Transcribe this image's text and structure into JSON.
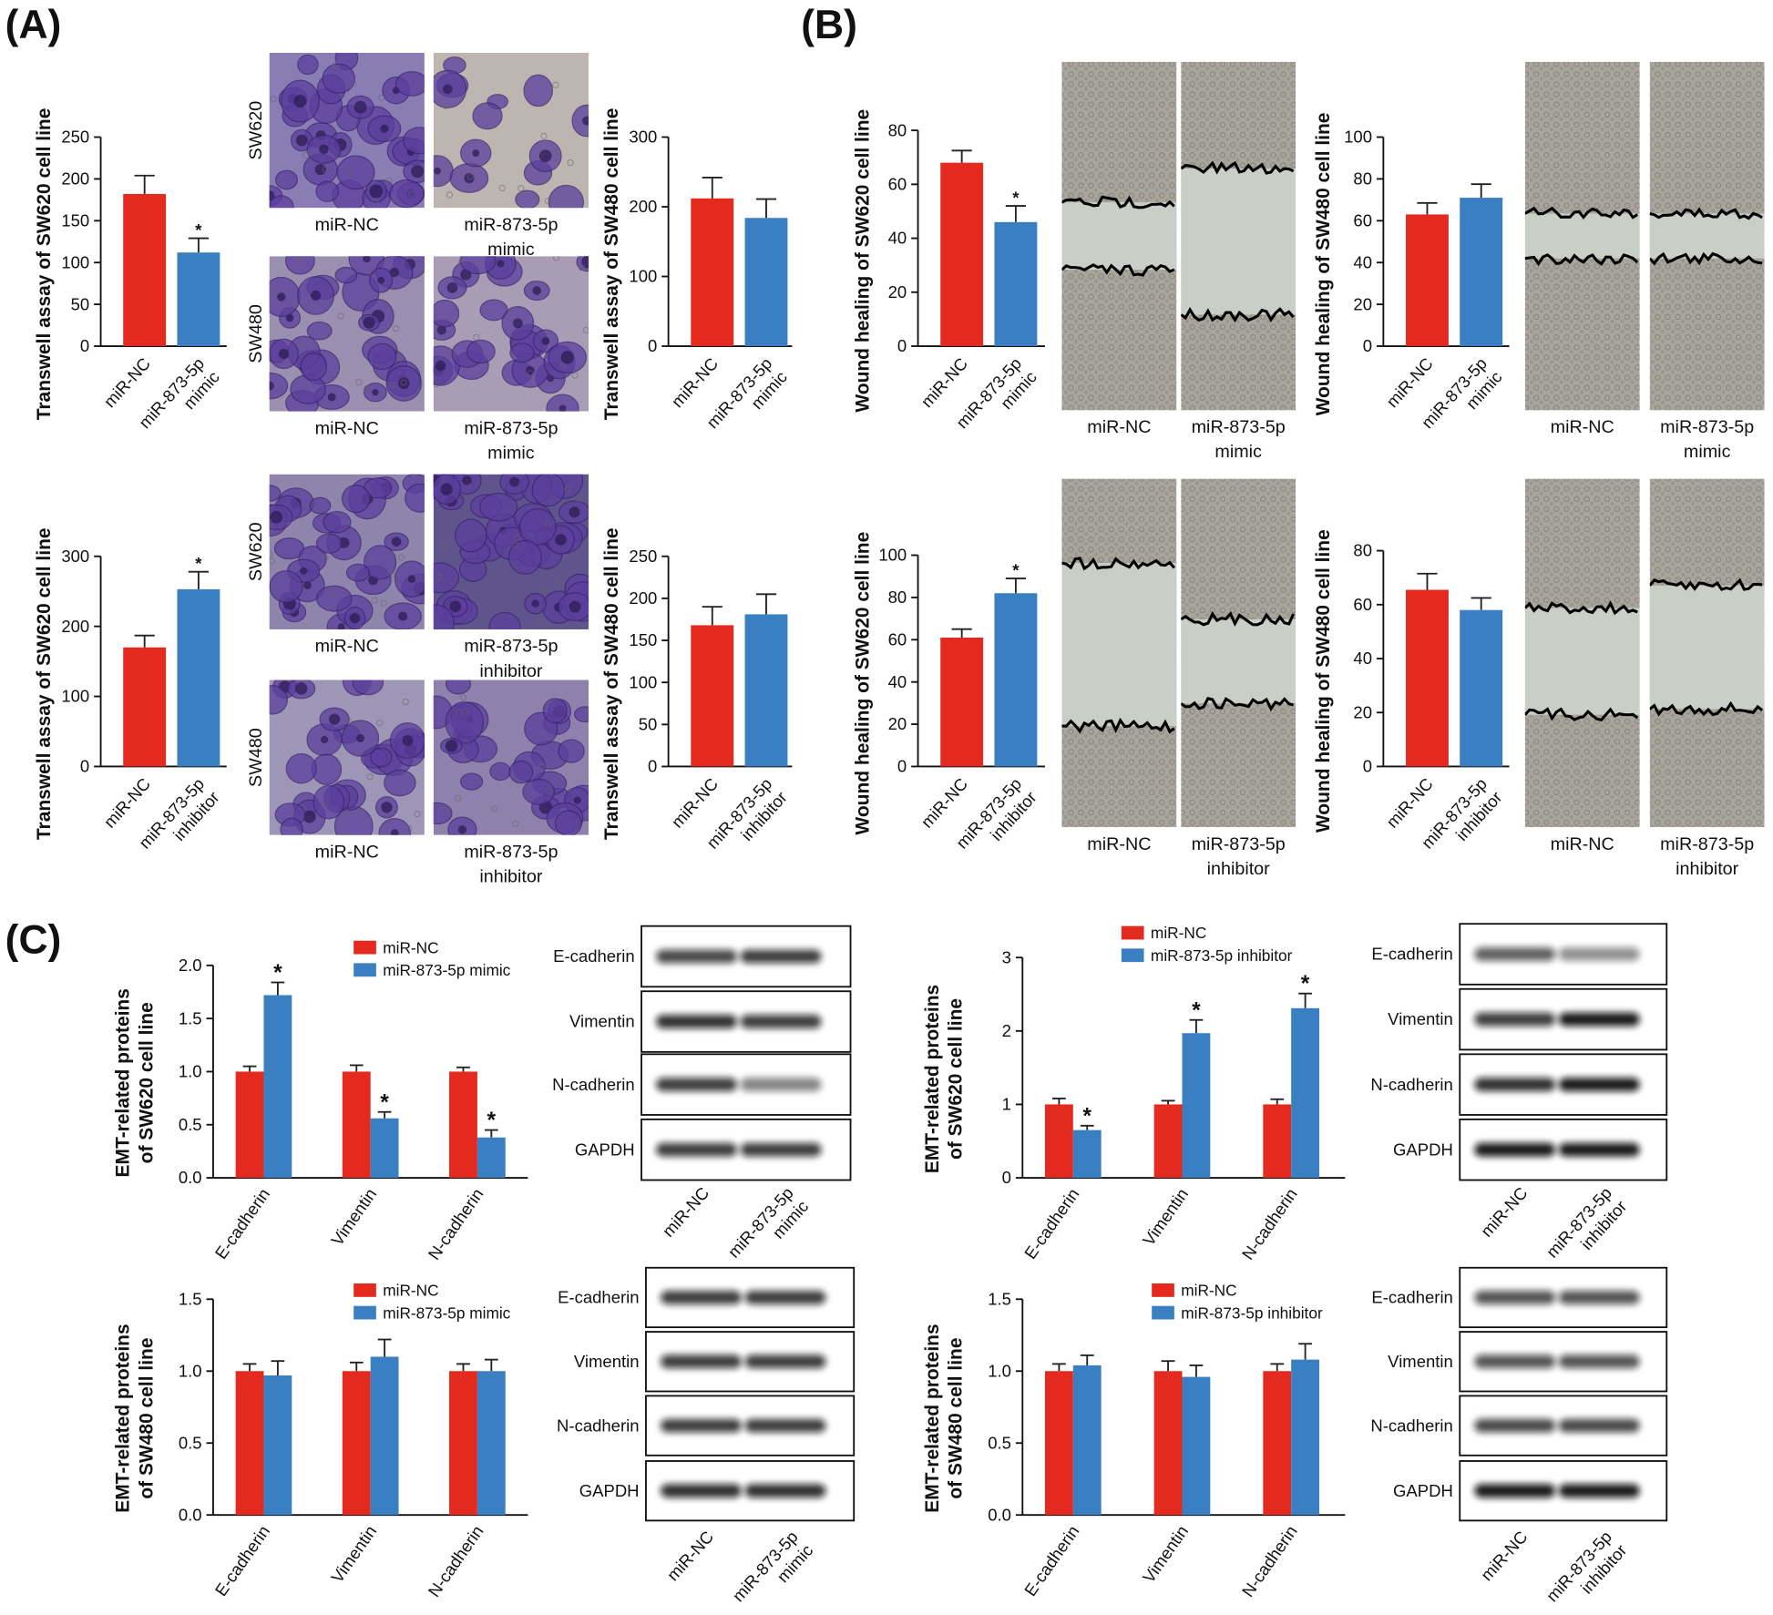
{
  "panel_labels": [
    "(A)",
    "(B)",
    "(C)"
  ],
  "chart_data": [
    {
      "type": "bar",
      "ylabel": "Transwell assay of SW620 cell line",
      "categories": [
        [
          "miR-NC"
        ],
        [
          "miR-873-5p",
          "mimic"
        ]
      ],
      "values": [
        182,
        112
      ],
      "errors": [
        22,
        17
      ],
      "colors": [
        "#e42a1e",
        "#3a7fc1"
      ],
      "annotations": [
        {
          "index": 1,
          "text": "*"
        }
      ],
      "ylim": [
        0,
        250
      ],
      "yticks": [
        0,
        50,
        100,
        150,
        200,
        250
      ]
    },
    {
      "type": "bar",
      "ylabel": "Transwell assay of SW480 cell line",
      "categories": [
        [
          "miR-NC"
        ],
        [
          "miR-873-5p",
          "mimic"
        ]
      ],
      "values": [
        212,
        184
      ],
      "errors": [
        30,
        27
      ],
      "colors": [
        "#e42a1e",
        "#3a7fc1"
      ],
      "ylim": [
        0,
        300
      ],
      "yticks": [
        0,
        100,
        200,
        300
      ]
    },
    {
      "type": "bar",
      "ylabel": "Transwell assay of SW620 cell line",
      "categories": [
        [
          "miR-NC"
        ],
        [
          "miR-873-5p",
          "inhibitor"
        ]
      ],
      "values": [
        170,
        253
      ],
      "errors": [
        17,
        25
      ],
      "colors": [
        "#e42a1e",
        "#3a7fc1"
      ],
      "annotations": [
        {
          "index": 1,
          "text": "*"
        }
      ],
      "ylim": [
        0,
        300
      ],
      "yticks": [
        0,
        100,
        200,
        300
      ]
    },
    {
      "type": "bar",
      "ylabel": "Transwell assay of SW480 cell line",
      "categories": [
        [
          "miR-NC"
        ],
        [
          "miR-873-5p",
          "inhibitor"
        ]
      ],
      "values": [
        168,
        181
      ],
      "errors": [
        22,
        24
      ],
      "colors": [
        "#e42a1e",
        "#3a7fc1"
      ],
      "ylim": [
        0,
        250
      ],
      "yticks": [
        0,
        50,
        100,
        150,
        200,
        250
      ]
    },
    {
      "type": "bar",
      "ylabel": "Wound healing of SW620 cell line",
      "categories": [
        [
          "miR-NC"
        ],
        [
          "miR-873-5p",
          "mimic"
        ]
      ],
      "values": [
        68,
        46
      ],
      "errors": [
        4.5,
        6
      ],
      "colors": [
        "#e42a1e",
        "#3a7fc1"
      ],
      "annotations": [
        {
          "index": 1,
          "text": "*"
        }
      ],
      "ylim": [
        0,
        80
      ],
      "yticks": [
        0,
        20,
        40,
        60,
        80
      ]
    },
    {
      "type": "bar",
      "ylabel": "Wound healing of SW480 cell line",
      "categories": [
        [
          "miR-NC"
        ],
        [
          "miR-873-5p",
          "mimic"
        ]
      ],
      "values": [
        63,
        71
      ],
      "errors": [
        5.5,
        6.5
      ],
      "colors": [
        "#e42a1e",
        "#3a7fc1"
      ],
      "ylim": [
        0,
        100
      ],
      "yticks": [
        0,
        20,
        40,
        60,
        80,
        100
      ]
    },
    {
      "type": "bar",
      "ylabel": "Wound healing of SW620 cell line",
      "categories": [
        [
          "miR-NC"
        ],
        [
          "miR-873-5p",
          "inhibitor"
        ]
      ],
      "values": [
        61,
        82
      ],
      "errors": [
        4,
        7
      ],
      "colors": [
        "#e42a1e",
        "#3a7fc1"
      ],
      "annotations": [
        {
          "index": 1,
          "text": "*"
        }
      ],
      "ylim": [
        0,
        100
      ],
      "yticks": [
        0,
        20,
        40,
        60,
        80,
        100
      ]
    },
    {
      "type": "bar",
      "ylabel": "Wound healing of SW480 cell line",
      "categories": [
        [
          "miR-NC"
        ],
        [
          "miR-873-5p",
          "inhibitor"
        ]
      ],
      "values": [
        65.5,
        58
      ],
      "errors": [
        6,
        4.5
      ],
      "colors": [
        "#e42a1e",
        "#3a7fc1"
      ],
      "ylim": [
        0,
        80
      ],
      "yticks": [
        0,
        20,
        40,
        60,
        80
      ]
    },
    {
      "type": "grouped_bar",
      "ylabel": [
        "EMT-related proteins",
        "of SW620 cell line"
      ],
      "categories": [
        "E-cadherin",
        "Vimentin",
        "N-cadherin"
      ],
      "series": [
        {
          "name": "miR-NC",
          "color": "#e42a1e",
          "values": [
            1,
            1,
            1
          ],
          "errors": [
            0.05,
            0.06,
            0.04
          ]
        },
        {
          "name": "miR-873-5p mimic",
          "color": "#3a7fc1",
          "values": [
            1.72,
            0.56,
            0.38
          ],
          "errors": [
            0.12,
            0.06,
            0.07
          ]
        }
      ],
      "annotations": [
        {
          "series": 1,
          "index": 0,
          "text": "*"
        },
        {
          "series": 1,
          "index": 1,
          "text": "*"
        },
        {
          "series": 1,
          "index": 2,
          "text": "*"
        }
      ],
      "ylim": [
        0,
        2
      ],
      "yticks": [
        {
          "value": 0,
          "label": "0.0"
        },
        0.5,
        {
          "value": 1,
          "label": "1.0"
        },
        1.5,
        {
          "value": 2,
          "label": "2.0"
        }
      ],
      "legend": true
    },
    {
      "type": "grouped_bar",
      "ylabel": [
        "EMT-related proteins",
        "of SW620 cell line"
      ],
      "categories": [
        "E-cadherin",
        "Vimentin",
        "N-cadherin"
      ],
      "series": [
        {
          "name": "miR-NC",
          "color": "#e42a1e",
          "values": [
            1,
            1,
            1
          ],
          "errors": [
            0.08,
            0.05,
            0.07
          ]
        },
        {
          "name": "miR-873-5p inhibitor",
          "color": "#3a7fc1",
          "values": [
            0.65,
            1.97,
            2.31
          ],
          "errors": [
            0.06,
            0.18,
            0.2
          ]
        }
      ],
      "annotations": [
        {
          "series": 1,
          "index": 0,
          "text": "*"
        },
        {
          "series": 1,
          "index": 1,
          "text": "*"
        },
        {
          "series": 1,
          "index": 2,
          "text": "*"
        }
      ],
      "ylim": [
        0,
        3
      ],
      "yticks": [
        0,
        1,
        2,
        3
      ],
      "legend": true
    },
    {
      "type": "grouped_bar",
      "ylabel": [
        "EMT-related proteins",
        "of SW480 cell line"
      ],
      "categories": [
        "E-cadherin",
        "Vimentin",
        "N-cadherin"
      ],
      "series": [
        {
          "name": "miR-NC",
          "color": "#e42a1e",
          "values": [
            1,
            1,
            1
          ],
          "errors": [
            0.05,
            0.06,
            0.05
          ]
        },
        {
          "name": "miR-873-5p mimic",
          "color": "#3a7fc1",
          "values": [
            0.97,
            1.1,
            1.0
          ],
          "errors": [
            0.1,
            0.12,
            0.08
          ]
        }
      ],
      "ylim": [
        0,
        1.5
      ],
      "yticks": [
        {
          "value": 0,
          "label": "0.0"
        },
        0.5,
        {
          "value": 1,
          "label": "1.0"
        },
        1.5
      ],
      "legend": true
    },
    {
      "type": "grouped_bar",
      "ylabel": [
        "EMT-related proteins",
        "of SW480 cell line"
      ],
      "categories": [
        "E-cadherin",
        "Vimentin",
        "N-cadherin"
      ],
      "series": [
        {
          "name": "miR-NC",
          "color": "#e42a1e",
          "values": [
            1,
            1,
            1
          ],
          "errors": [
            0.05,
            0.07,
            0.05
          ]
        },
        {
          "name": "miR-873-5p inhibitor",
          "color": "#3a7fc1",
          "values": [
            1.04,
            0.96,
            1.08
          ],
          "errors": [
            0.07,
            0.08,
            0.11
          ]
        }
      ],
      "ylim": [
        0,
        1.5
      ],
      "yticks": [
        {
          "value": 0,
          "label": "0.0"
        },
        0.5,
        {
          "value": 1,
          "label": "1.0"
        },
        1.5
      ],
      "legend": true
    }
  ],
  "micrographs": [
    {
      "rows": [
        {
          "label": "SW620",
          "captions": [
            [
              "miR-NC"
            ],
            [
              "miR-873-5p",
              "mimic"
            ]
          ]
        },
        {
          "label": "SW480",
          "captions": [
            [
              "miR-NC"
            ],
            [
              "miR-873-5p",
              "mimic"
            ]
          ]
        }
      ]
    },
    {
      "rows": [
        {
          "label": "SW620",
          "captions": [
            [
              "miR-NC"
            ],
            [
              "miR-873-5p",
              "inhibitor"
            ]
          ]
        },
        {
          "label": "SW480",
          "captions": [
            [
              "miR-NC"
            ],
            [
              "miR-873-5p",
              "inhibitor"
            ]
          ]
        }
      ]
    }
  ],
  "wound_images": [
    {
      "captions": [
        [
          "miR-NC"
        ],
        [
          "miR-873-5p",
          "mimic"
        ]
      ]
    },
    {
      "captions": [
        [
          "miR-NC"
        ],
        [
          "miR-873-5p",
          "mimic"
        ]
      ]
    },
    {
      "captions": [
        [
          "miR-NC"
        ],
        [
          "miR-873-5p",
          "inhibitor"
        ]
      ]
    },
    {
      "captions": [
        [
          "miR-NC"
        ],
        [
          "miR-873-5p",
          "inhibitor"
        ]
      ]
    }
  ],
  "blots": [
    {
      "proteins": [
        "E-cadherin",
        "Vimentin",
        "N-cadherin",
        "GAPDH"
      ],
      "lanes": [
        [
          "miR-NC"
        ],
        [
          "miR-873-5p",
          "mimic"
        ]
      ]
    },
    {
      "proteins": [
        "E-cadherin",
        "Vimentin",
        "N-cadherin",
        "GAPDH"
      ],
      "lanes": [
        [
          "miR-NC"
        ],
        [
          "miR-873-5p",
          "inhibitor"
        ]
      ]
    },
    {
      "proteins": [
        "E-cadherin",
        "Vimentin",
        "N-cadherin",
        "GAPDH"
      ],
      "lanes": [
        [
          "miR-NC"
        ],
        [
          "miR-873-5p",
          "mimic"
        ]
      ]
    },
    {
      "proteins": [
        "E-cadherin",
        "Vimentin",
        "N-cadherin",
        "GAPDH"
      ],
      "lanes": [
        [
          "miR-NC"
        ],
        [
          "miR-873-5p",
          "inhibitor"
        ]
      ]
    }
  ]
}
